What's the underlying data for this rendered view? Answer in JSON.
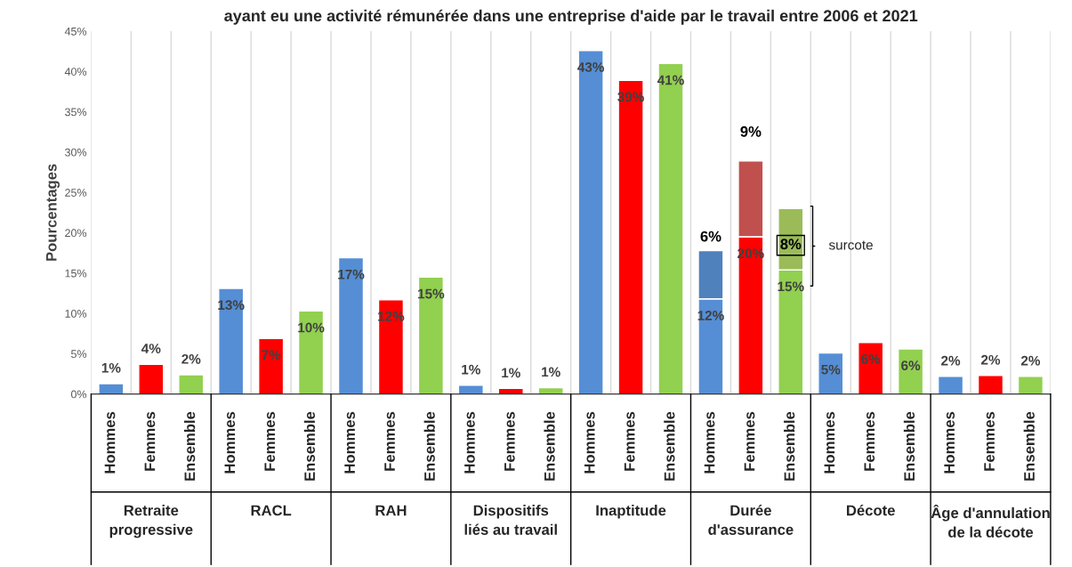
{
  "chart_data": {
    "type": "bar",
    "title": "ayant eu une activité rémunérée dans une entreprise d'aide par le travail entre 2006 et 2021",
    "ylabel": "Pourcentages",
    "stacked": true,
    "categories": [
      "Hommes",
      "Femmes",
      "Ensemble",
      "Hommes",
      "Femmes",
      "Ensemble",
      "Hommes",
      "Femmes",
      "Ensemble",
      "Hommes",
      "Femmes",
      "Ensemble",
      "Hommes",
      "Femmes",
      "Ensemble",
      "Hommes",
      "Femmes",
      "Ensemble",
      "Hommes",
      "Femmes",
      "Ensemble",
      "Hommes",
      "Femmes",
      "Ensemble"
    ],
    "series": [
      {
        "colors": [
          "#558ed5",
          "#ff0000",
          "#92d050",
          "#558ed5",
          "#ff0000",
          "#92d050",
          "#558ed5",
          "#ff0000",
          "#92d050",
          "#558ed5",
          "#ff0000",
          "#92d050",
          "#558ed5",
          "#ff0000",
          "#92d050",
          "#558ed5",
          "#ff0000",
          "#92d050",
          "#558ed5",
          "#ff0000",
          "#92d050",
          "#558ed5",
          "#ff0000",
          "#92d050"
        ],
        "values": [
          1.3,
          3.7,
          2.4,
          13.1,
          6.9,
          10.3,
          16.9,
          11.7,
          14.5,
          1.1,
          0.7,
          0.8,
          42.6,
          38.9,
          41.0,
          11.8,
          19.5,
          15.4,
          5.1,
          6.4,
          5.6,
          2.2,
          2.3,
          2.2
        ],
        "value_labels": [
          "1%",
          "4%",
          "2%",
          "13%",
          "7%",
          "10%",
          "17%",
          "12%",
          "15%",
          "1%",
          "1%",
          "1%",
          "43%",
          "39%",
          "41%",
          "12%",
          "20%",
          "15%",
          "5%",
          "6%",
          "6%",
          "2%",
          "2%",
          "2%"
        ]
      },
      {
        "name": "surcote",
        "colors": [
          null,
          null,
          null,
          null,
          null,
          null,
          null,
          null,
          null,
          null,
          null,
          null,
          null,
          null,
          null,
          "#4f81bd",
          "#c0504d",
          "#9bbb59",
          null,
          null,
          null,
          null,
          null,
          null
        ],
        "values": [
          null,
          null,
          null,
          null,
          null,
          null,
          null,
          null,
          null,
          null,
          null,
          null,
          null,
          null,
          null,
          6.0,
          9.4,
          7.6,
          null,
          null,
          null,
          null,
          null,
          null
        ],
        "value_labels": [
          null,
          null,
          null,
          null,
          null,
          null,
          null,
          null,
          null,
          null,
          null,
          null,
          null,
          null,
          null,
          "6%",
          "9%",
          "8%",
          null,
          null,
          null,
          null,
          null,
          null
        ]
      }
    ],
    "annotations": [
      "Retraite progressive",
      "RACL",
      "RAH",
      "Dispositifs liés au travail",
      "Inaptitude",
      "Durée d'assurance",
      "Décote",
      "Âge d'annulation de la décote"
    ],
    "ylim": [
      0,
      45
    ],
    "yticks": [
      {
        "value": 0,
        "label": "0%"
      },
      {
        "value": 5,
        "label": "5%"
      },
      {
        "value": 10,
        "label": "10%"
      },
      {
        "value": 15,
        "label": "15%"
      },
      {
        "value": 20,
        "label": "20%"
      },
      {
        "value": 25,
        "label": "25%"
      },
      {
        "value": 30,
        "label": "30%"
      },
      {
        "value": 35,
        "label": "35%"
      },
      {
        "value": 40,
        "label": "40%"
      },
      {
        "value": 45,
        "label": "45%"
      }
    ],
    "grid": "x",
    "legend": false
  }
}
